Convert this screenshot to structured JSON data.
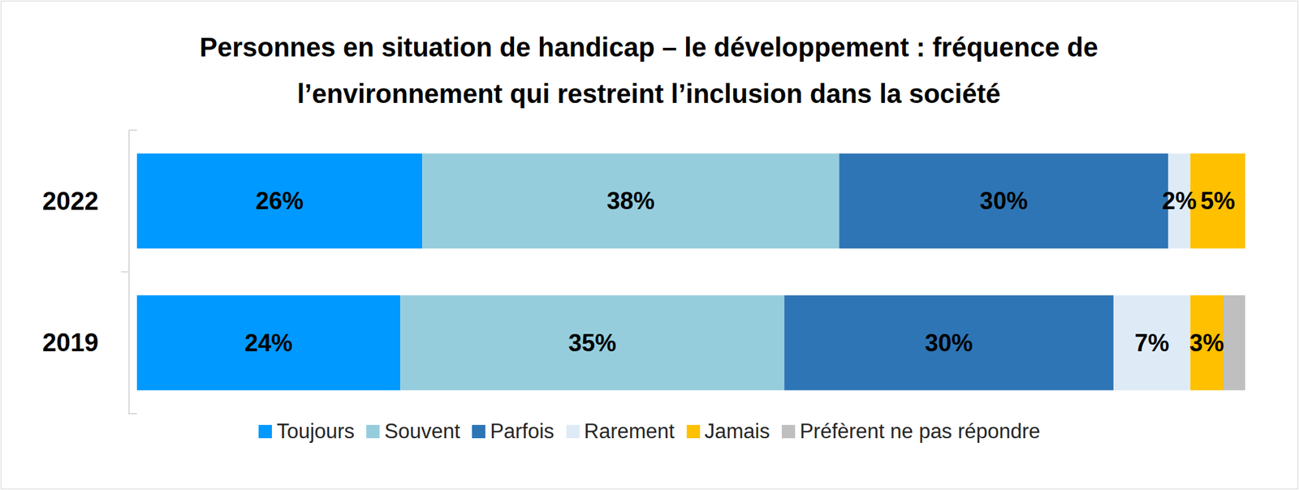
{
  "chart_data": {
    "type": "bar",
    "orientation": "horizontal",
    "stacked": true,
    "title": "Personnes en situation de handicap – le développement : fréquence de l’environnement qui restreint l’inclusion dans la société",
    "categories": [
      "2022",
      "2019"
    ],
    "xlim": [
      0,
      101
    ],
    "tick_labels": "y",
    "data_labels": true,
    "legend": "bottom",
    "series": [
      {
        "name": "Toujours",
        "color": "#0099ff",
        "values": [
          26,
          24
        ],
        "value_labels": [
          "26%",
          "24%"
        ]
      },
      {
        "name": "Souvent",
        "color": "#96cddd",
        "values": [
          38,
          35
        ],
        "value_labels": [
          "38%",
          "35%"
        ]
      },
      {
        "name": "Parfois",
        "color": "#2e75b6",
        "values": [
          30,
          30
        ],
        "value_labels": [
          "30%",
          "30%"
        ]
      },
      {
        "name": "Rarement",
        "color": "#deebf7",
        "values": [
          2,
          7
        ],
        "value_labels": [
          "2%",
          "7%"
        ]
      },
      {
        "name": "Jamais",
        "color": "#ffc000",
        "values": [
          5,
          3
        ],
        "value_labels": [
          "5%",
          "3%"
        ]
      },
      {
        "name": "Préfèrent ne pas répondre",
        "color": "#bfbfbf",
        "values": [
          null,
          2
        ],
        "data_labels": false
      }
    ]
  }
}
